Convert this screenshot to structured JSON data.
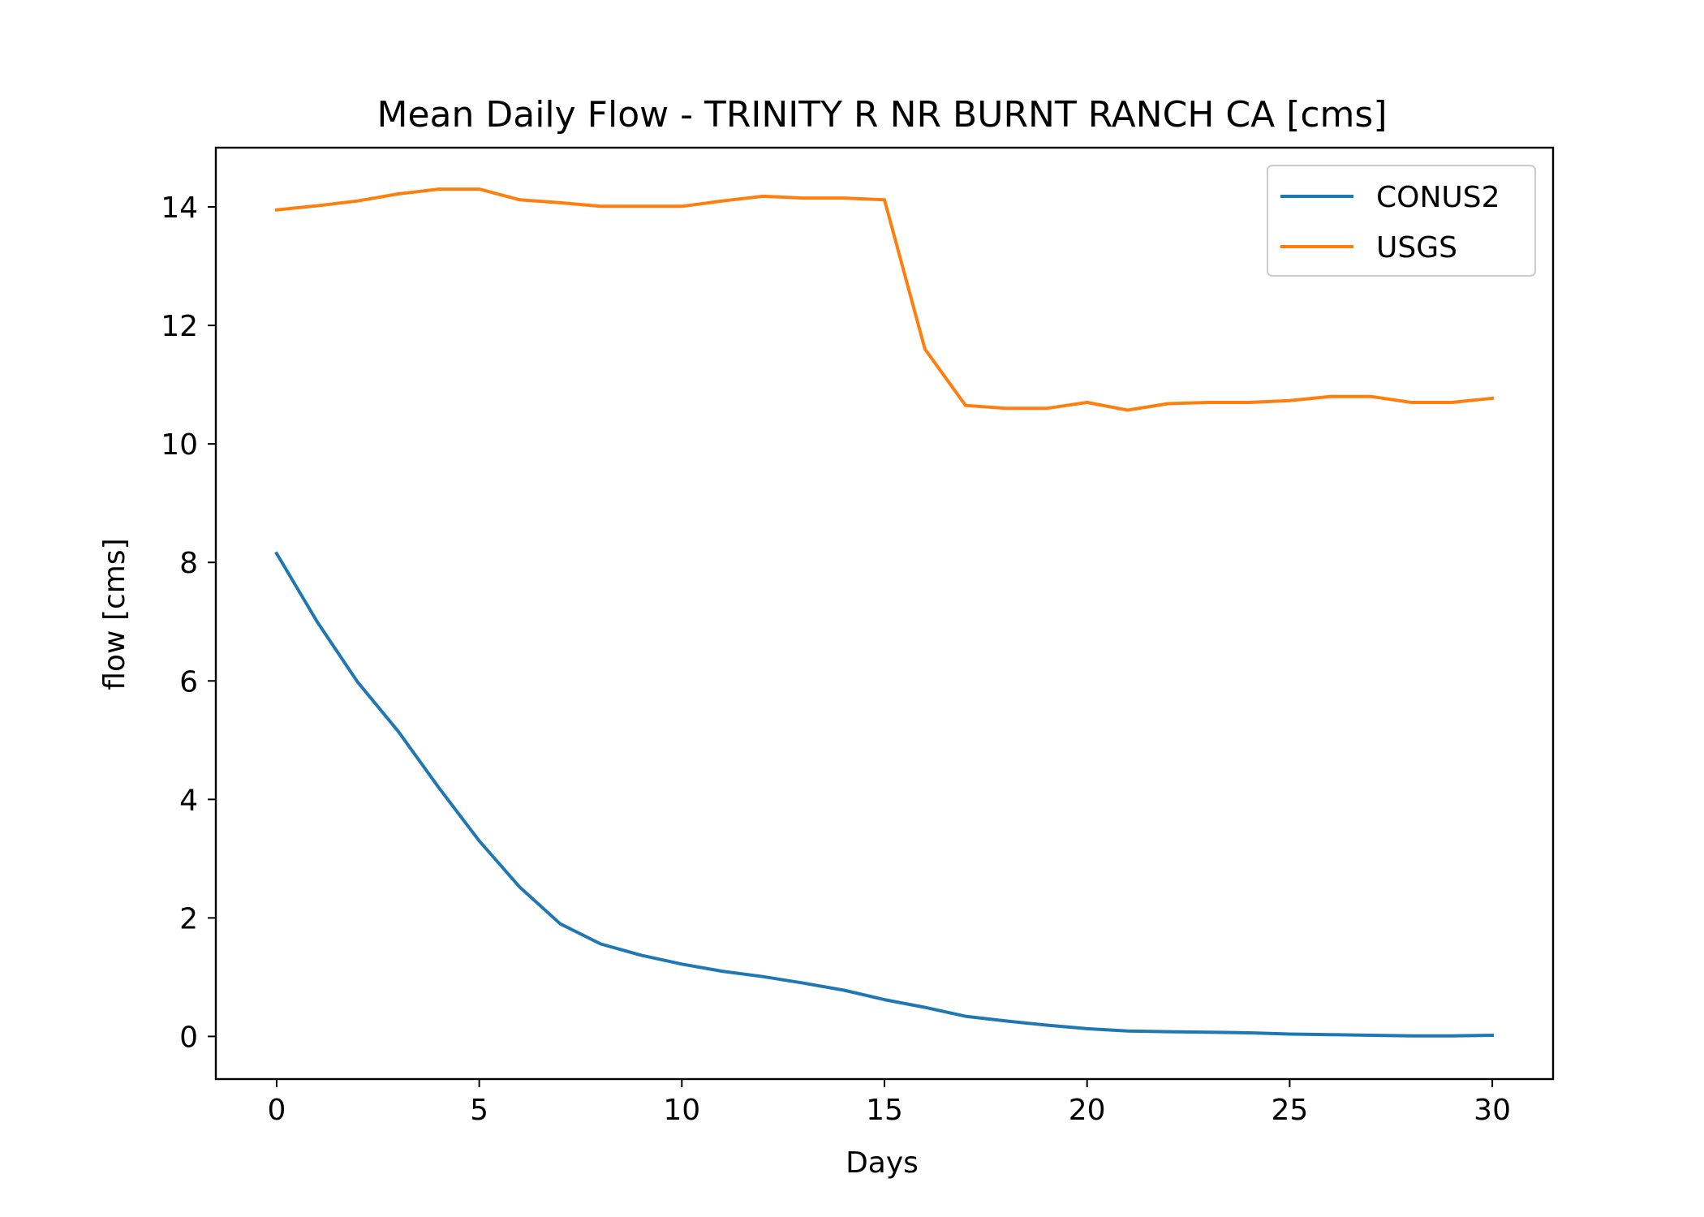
{
  "chart_data": {
    "type": "line",
    "title": "Mean Daily Flow - TRINITY R NR BURNT RANCH CA [cms]",
    "xlabel": "Days",
    "ylabel": "flow [cms]",
    "xlim": [
      -1.5,
      31.5
    ],
    "ylim": [
      -0.72,
      15.0
    ],
    "xticks": [
      0,
      5,
      10,
      15,
      20,
      25,
      30
    ],
    "yticks": [
      0,
      2,
      4,
      6,
      8,
      10,
      12,
      14
    ],
    "grid": false,
    "legend_position": "top-right",
    "x": [
      0,
      1,
      2,
      3,
      4,
      5,
      6,
      7,
      8,
      9,
      10,
      11,
      12,
      13,
      14,
      15,
      16,
      17,
      18,
      19,
      20,
      21,
      22,
      23,
      24,
      25,
      26,
      27,
      28,
      29,
      30
    ],
    "series": [
      {
        "name": "CONUS2",
        "color": "#1f77b4",
        "values": [
          8.15,
          7.0,
          5.98,
          5.15,
          4.2,
          3.3,
          2.52,
          1.9,
          1.56,
          1.37,
          1.22,
          1.1,
          1.01,
          0.9,
          0.78,
          0.62,
          0.49,
          0.34,
          0.26,
          0.19,
          0.13,
          0.09,
          0.08,
          0.07,
          0.06,
          0.04,
          0.03,
          0.02,
          0.01,
          0.01,
          0.02
        ]
      },
      {
        "name": "USGS",
        "color": "#ff7f0e",
        "values": [
          13.95,
          14.02,
          14.1,
          14.22,
          14.3,
          14.3,
          14.12,
          14.07,
          14.01,
          14.01,
          14.01,
          14.1,
          14.18,
          14.15,
          14.15,
          14.12,
          11.6,
          10.65,
          10.6,
          10.6,
          10.7,
          10.57,
          10.68,
          10.7,
          10.7,
          10.73,
          10.8,
          10.8,
          10.7,
          10.7,
          10.77
        ]
      }
    ]
  }
}
